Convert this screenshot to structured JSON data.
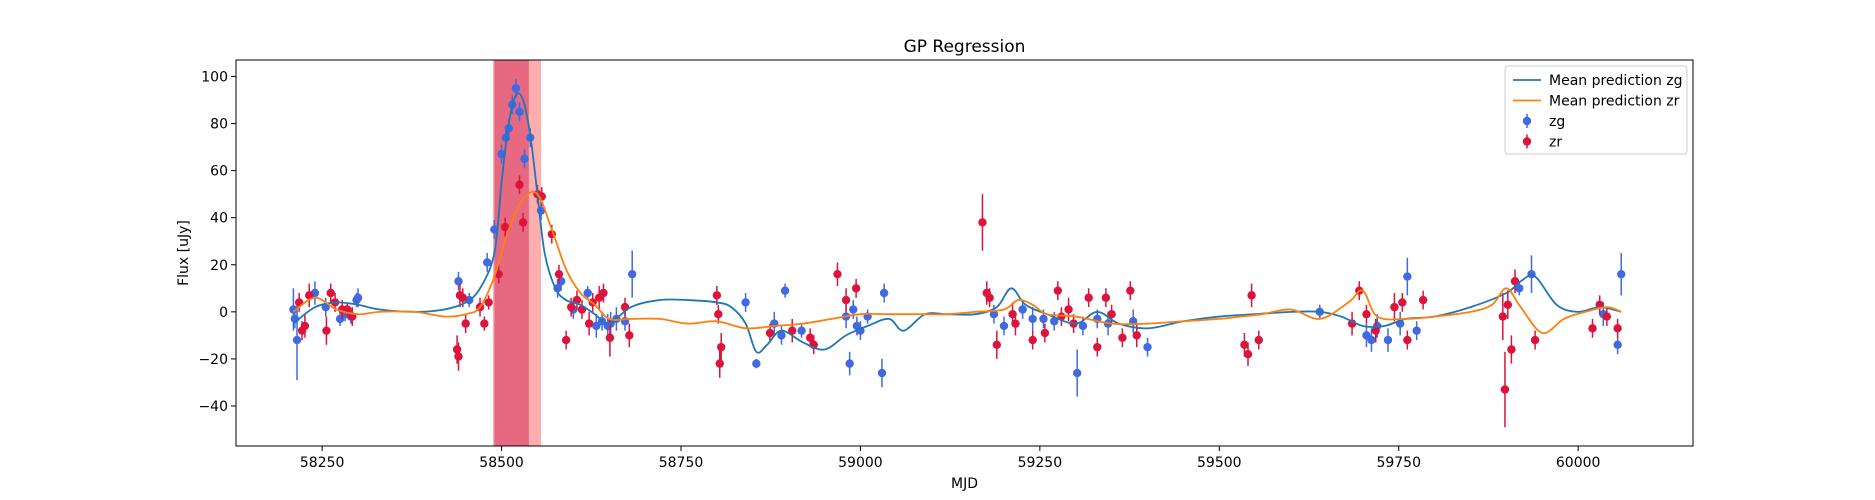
{
  "chart_data": {
    "type": "scatter",
    "title": "GP Regression",
    "xlabel": "MJD",
    "ylabel": "Flux [uJy]",
    "xlim": [
      58130,
      60160
    ],
    "ylim": [
      -57,
      107
    ],
    "xticks": [
      58250,
      58500,
      58750,
      59000,
      59250,
      59500,
      59750,
      60000
    ],
    "yticks": [
      -40,
      -20,
      0,
      20,
      40,
      60,
      80,
      100
    ],
    "grid": false,
    "legend_placement": "top-right",
    "shaded_regions": [
      {
        "x0": 58490,
        "x1": 58538,
        "color": "#b4307a",
        "opacity": 0.75
      },
      {
        "x0": 58488,
        "x1": 58555,
        "color": "#ff6b6b",
        "opacity": 0.55
      }
    ],
    "series": [
      {
        "name": "Mean prediction zg",
        "kind": "line",
        "color": "#1f77b4",
        "x": [
          58210,
          58240,
          58270,
          58300,
          58330,
          58380,
          58420,
          58450,
          58470,
          58490,
          58500,
          58510,
          58520,
          58530,
          58540,
          58550,
          58560,
          58575,
          58590,
          58610,
          58630,
          58650,
          58680,
          58720,
          58760,
          58800,
          58820,
          58840,
          58855,
          58870,
          58890,
          58920,
          58950,
          58980,
          59010,
          59040,
          59060,
          59090,
          59120,
          59160,
          59190,
          59210,
          59230,
          59260,
          59300,
          59330,
          59360,
          59400,
          59450,
          59500,
          59550,
          59600,
          59640,
          59670,
          59700,
          59730,
          59760,
          59800,
          59850,
          59900,
          59920,
          59940,
          59970,
          60000,
          60030,
          60060
        ],
        "y": [
          -5,
          2,
          4,
          3,
          1,
          0,
          1,
          4,
          10,
          25,
          55,
          80,
          92,
          90,
          75,
          50,
          25,
          10,
          5,
          3,
          -1,
          -5,
          2,
          5,
          5,
          4,
          2,
          -5,
          -17,
          -14,
          -8,
          -13,
          -16,
          -10,
          -6,
          -3,
          -8,
          -1,
          -1,
          -1,
          2,
          10,
          3,
          -1,
          -5,
          0,
          -5,
          -7,
          -4,
          -2,
          -1,
          0,
          0,
          -2,
          -6,
          -6,
          -3,
          -2,
          2,
          8,
          13,
          15,
          3,
          0,
          2,
          0
        ]
      },
      {
        "name": "Mean prediction zr",
        "kind": "line",
        "color": "#ff7f0e",
        "x": [
          58210,
          58240,
          58270,
          58300,
          58330,
          58380,
          58420,
          58450,
          58470,
          58490,
          58510,
          58530,
          58550,
          58570,
          58590,
          58610,
          58630,
          58650,
          58680,
          58720,
          58760,
          58800,
          58840,
          58880,
          58920,
          58960,
          59000,
          59040,
          59080,
          59120,
          59160,
          59200,
          59220,
          59240,
          59260,
          59300,
          59350,
          59400,
          59450,
          59500,
          59530,
          59560,
          59600,
          59640,
          59680,
          59700,
          59720,
          59760,
          59800,
          59850,
          59880,
          59900,
          59920,
          59950,
          59980,
          60010,
          60040,
          60060
        ],
        "y": [
          0,
          6,
          1,
          -1,
          0,
          0,
          -2,
          -1,
          2,
          15,
          35,
          48,
          50,
          35,
          18,
          8,
          3,
          -3,
          -3,
          -3,
          -5,
          -4,
          -7,
          -6,
          -5,
          -3,
          -1,
          -1,
          -1,
          -1,
          0,
          1,
          5,
          3,
          -1,
          -2,
          -5,
          -5,
          -4,
          -3,
          -2,
          -1,
          1,
          -3,
          4,
          9,
          -2,
          -3,
          -2,
          0,
          3,
          10,
          2,
          -9,
          -3,
          0,
          2,
          0
        ]
      },
      {
        "name": "zg",
        "kind": "errorbar",
        "color": "#4169e1",
        "x": [
          58210,
          58212,
          58215,
          58240,
          58255,
          58275,
          58282,
          58290,
          58298,
          58300,
          58440,
          58455,
          58480,
          58490,
          58500,
          58506,
          58510,
          58515,
          58520,
          58525,
          58532,
          58540,
          58555,
          58578,
          58583,
          58600,
          58620,
          58632,
          58640,
          58648,
          58652,
          58660,
          58672,
          58682,
          58840,
          58855,
          58880,
          58890,
          58895,
          58918,
          58980,
          58985,
          58990,
          58995,
          59000,
          59010,
          59030,
          59033,
          59186,
          59200,
          59226,
          59240,
          59255,
          59270,
          59302,
          59310,
          59330,
          59345,
          59380,
          59400,
          59640,
          59705,
          59712,
          59720,
          59735,
          59752,
          59762,
          59775,
          59918,
          59935,
          60035,
          60055,
          60060
        ],
        "y": [
          1,
          -3,
          -12,
          8,
          2,
          -3,
          -1,
          -2,
          5,
          6,
          13,
          5,
          21,
          35,
          67,
          74,
          78,
          88,
          95,
          85,
          65,
          74,
          43,
          10,
          13,
          1,
          8,
          -6,
          -4,
          -6,
          -5,
          -3,
          -4,
          16,
          4,
          -22,
          -5,
          -10,
          9,
          -8,
          -2,
          -22,
          1,
          -6,
          -8,
          -2,
          -26,
          8,
          -1,
          -6,
          1,
          -3,
          -3,
          -4,
          -26,
          -6,
          -3,
          -5,
          -4,
          -15,
          0,
          -10,
          -12,
          -6,
          -12,
          -5,
          15,
          -8,
          10,
          16,
          -1,
          -14,
          16
        ],
        "err": [
          9,
          4,
          17,
          5,
          4,
          3,
          3,
          3,
          3,
          4,
          4,
          3,
          4,
          4,
          4,
          3,
          4,
          4,
          4,
          4,
          4,
          4,
          4,
          4,
          4,
          4,
          3,
          5,
          4,
          5,
          5,
          5,
          4,
          10,
          4,
          2,
          5,
          4,
          3,
          3,
          5,
          5,
          4,
          4,
          4,
          3,
          6,
          4,
          4,
          4,
          4,
          5,
          4,
          4,
          10,
          4,
          4,
          5,
          5,
          4,
          3,
          5,
          5,
          5,
          5,
          5,
          8,
          4,
          3,
          8,
          5,
          4,
          9
        ]
      },
      {
        "name": "zr",
        "kind": "errorbar",
        "color": "#dc143c",
        "x": [
          58218,
          58222,
          58226,
          58232,
          58256,
          58262,
          58268,
          58278,
          58285,
          58292,
          58438,
          58440,
          58442,
          58446,
          58450,
          58470,
          58476,
          58482,
          58496,
          58505,
          58525,
          58530,
          58550,
          58556,
          58570,
          58580,
          58590,
          58597,
          58605,
          58612,
          58622,
          58627,
          58636,
          58642,
          58651,
          58672,
          58678,
          58800,
          58802,
          58804,
          58806,
          58874,
          58905,
          58930,
          58935,
          58968,
          58980,
          58994,
          59170,
          59176,
          59180,
          59190,
          59212,
          59216,
          59240,
          59257,
          59275,
          59280,
          59290,
          59297,
          59318,
          59330,
          59342,
          59350,
          59365,
          59376,
          59385,
          59535,
          59540,
          59545,
          59555,
          59685,
          59695,
          59705,
          59718,
          59744,
          59755,
          59762,
          59784,
          59895,
          59898,
          59902,
          59907,
          59912,
          59940,
          60020,
          60030,
          60040,
          60055
        ],
        "y": [
          4,
          -8,
          -6,
          7,
          -8,
          8,
          4,
          1,
          1,
          -2,
          -16,
          -19,
          7,
          6,
          -5,
          2,
          -5,
          4,
          16,
          36,
          54,
          38,
          50,
          49,
          33,
          16,
          -12,
          2,
          5,
          1,
          -5,
          4,
          6,
          8,
          -11,
          2,
          -10,
          7,
          -1,
          -22,
          -15,
          -9,
          -8,
          -11,
          -14,
          16,
          5,
          10,
          38,
          8,
          6,
          -14,
          -1,
          -5,
          -12,
          -9,
          9,
          -2,
          1,
          -5,
          6,
          -15,
          6,
          -1,
          -11,
          9,
          -10,
          -14,
          -18,
          7,
          -12,
          -5,
          9,
          -1,
          -8,
          2,
          4,
          -12,
          5,
          -2,
          -33,
          3,
          -16,
          13,
          -12,
          -7,
          3,
          -2,
          -7
        ],
        "err": [
          4,
          4,
          5,
          5,
          6,
          4,
          4,
          4,
          3,
          4,
          6,
          6,
          5,
          4,
          4,
          4,
          3,
          3,
          4,
          4,
          4,
          4,
          4,
          4,
          4,
          4,
          4,
          4,
          4,
          4,
          5,
          4,
          5,
          4,
          8,
          4,
          5,
          4,
          4,
          6,
          6,
          4,
          5,
          4,
          4,
          5,
          5,
          4,
          12,
          5,
          4,
          6,
          5,
          5,
          4,
          4,
          4,
          4,
          5,
          4,
          4,
          4,
          4,
          4,
          4,
          4,
          5,
          5,
          5,
          5,
          4,
          5,
          4,
          4,
          5,
          6,
          4,
          4,
          4,
          10,
          16,
          6,
          6,
          5,
          4,
          4,
          4,
          4,
          4
        ]
      }
    ]
  }
}
